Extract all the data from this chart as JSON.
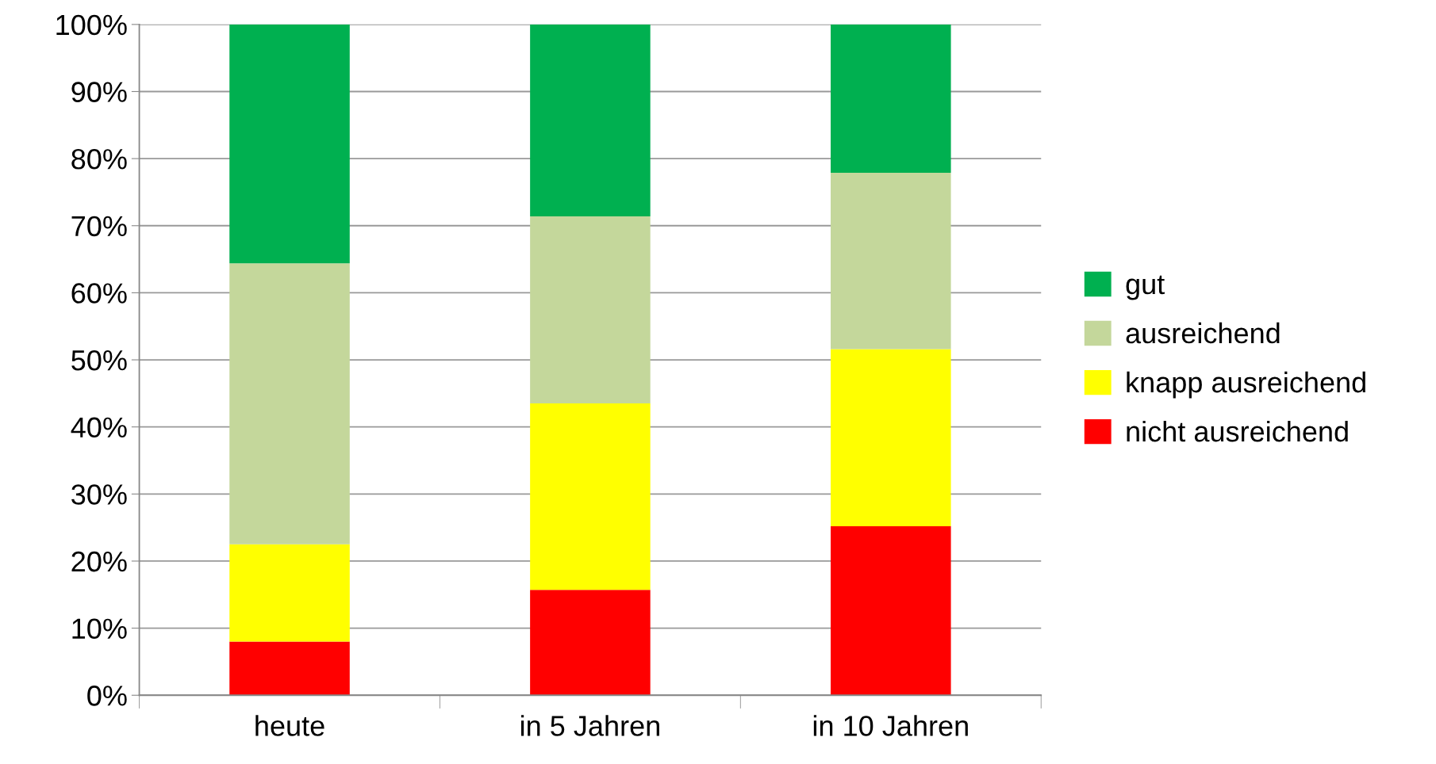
{
  "chart_data": {
    "type": "bar",
    "stacked": true,
    "categories": [
      "heute",
      "in 5 Jahren",
      "in 10 Jahren"
    ],
    "series": [
      {
        "name": "nicht ausreichend",
        "color": "#ff0000",
        "values": [
          8.0,
          15.7,
          25.2
        ]
      },
      {
        "name": "knapp ausreichend",
        "color": "#ffff00",
        "values": [
          14.5,
          27.8,
          26.4
        ]
      },
      {
        "name": "ausreichend",
        "color": "#c4d79b",
        "values": [
          41.9,
          27.9,
          26.3
        ]
      },
      {
        "name": "gut",
        "color": "#00b050",
        "values": [
          35.6,
          28.6,
          22.1
        ]
      }
    ],
    "ylim": [
      0,
      100
    ],
    "yticks": [
      {
        "value": 0,
        "label": "0%"
      },
      {
        "value": 10,
        "label": "10%"
      },
      {
        "value": 20,
        "label": "20%"
      },
      {
        "value": 30,
        "label": "30%"
      },
      {
        "value": 40,
        "label": "40%"
      },
      {
        "value": 50,
        "label": "50%"
      },
      {
        "value": 60,
        "label": "60%"
      },
      {
        "value": 70,
        "label": "70%"
      },
      {
        "value": 80,
        "label": "80%"
      },
      {
        "value": 90,
        "label": "90%"
      },
      {
        "value": 100,
        "label": "100%"
      }
    ],
    "grid": "y",
    "legend": "right"
  }
}
